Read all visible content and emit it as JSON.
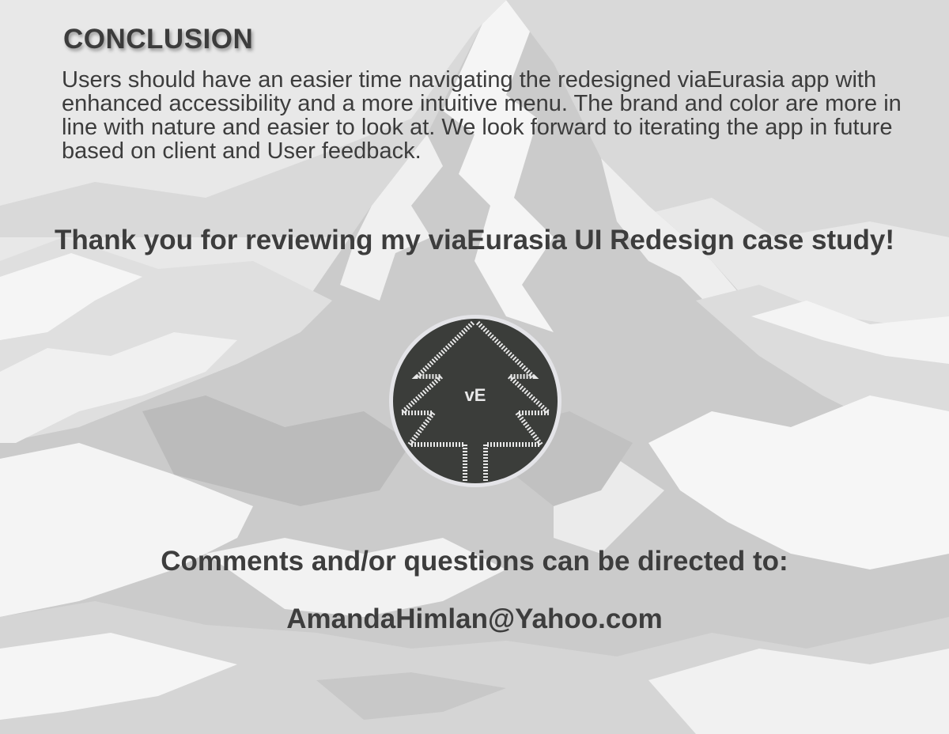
{
  "conclusion": {
    "heading": "CONCLUSION",
    "body": "Users should have an easier time navigating the redesigned viaEurasia app with enhanced accessibility and a more intuitive menu.  The brand and color are more in line with nature and easier to look at.  We look forward to iterating the app in future based on client and User feedback."
  },
  "thanks": "Thank you for reviewing my viaEurasia UI Redesign case study!",
  "logo": {
    "text": "vE",
    "icon": "pine-tree-icon",
    "colors": {
      "badge": "#3b3d3a",
      "ring": "#e4e4e8",
      "stitch": "#e8e8e8"
    }
  },
  "contact": {
    "prompt": "Comments and/or questions can be directed to:",
    "email": "AmandaHimlan@Yahoo.com"
  },
  "background": {
    "icon": "mountain-range-background",
    "colors": {
      "sky": "#e4e4e4",
      "snow": "#f4f4f4",
      "rock": "#c4c4c4",
      "shadow": "#a9a9a9"
    }
  }
}
